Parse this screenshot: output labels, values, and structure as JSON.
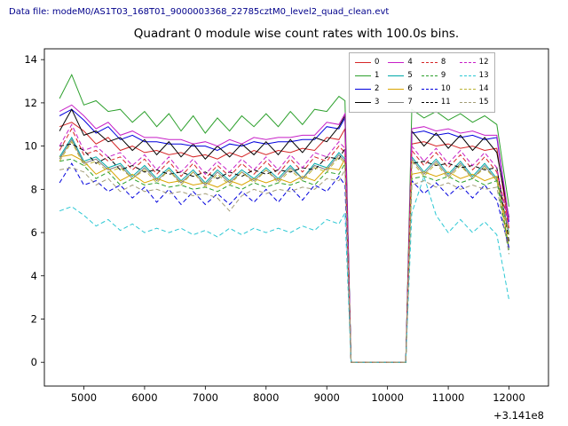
{
  "window": {
    "datafile_label": "Data file: modeM0/AS1T03_168T01_9000003368_22785cztM0_level2_quad_clean.evt"
  },
  "chart_data": {
    "type": "line",
    "title": "Quadrant 0 module wise count rates with 100.0s bins.",
    "xlabel": "",
    "ylabel": "",
    "x_offset_label": "+3.141e8",
    "xlim": [
      4350,
      12650
    ],
    "ylim": [
      -1.1,
      14.5
    ],
    "xticks": [
      5000,
      6000,
      7000,
      8000,
      9000,
      10000,
      11000,
      12000
    ],
    "yticks": [
      0,
      2,
      4,
      6,
      8,
      10,
      12,
      14
    ],
    "legend_position": "upper right",
    "grid": false,
    "x": [
      4600,
      4800,
      5000,
      5200,
      5400,
      5600,
      5800,
      6000,
      6200,
      6400,
      6600,
      6800,
      7000,
      7200,
      7400,
      7600,
      7800,
      8000,
      8200,
      8400,
      8600,
      8800,
      9000,
      9200,
      9300,
      9400,
      9800,
      10200,
      10300,
      10400,
      10600,
      10800,
      11000,
      11200,
      11400,
      11600,
      11800,
      12000
    ],
    "series": [
      {
        "name": "0",
        "color": "#d62728",
        "dash": false,
        "values": [
          10.9,
          11.1,
          10.7,
          10.1,
          10.4,
          9.8,
          10.0,
          9.7,
          9.8,
          9.6,
          9.7,
          9.5,
          9.6,
          9.4,
          9.7,
          9.5,
          9.8,
          9.6,
          9.8,
          9.7,
          9.9,
          9.8,
          10.4,
          10.3,
          10.8,
          0,
          0,
          0,
          0,
          10.1,
          10.2,
          10.0,
          10.1,
          9.9,
          10.0,
          9.8,
          9.9,
          6.2
        ]
      },
      {
        "name": "1",
        "color": "#2ca02c",
        "dash": false,
        "values": [
          12.2,
          13.3,
          11.9,
          12.1,
          11.6,
          11.7,
          11.1,
          11.6,
          10.9,
          11.5,
          10.7,
          11.4,
          10.6,
          11.3,
          10.7,
          11.4,
          10.9,
          11.5,
          10.9,
          11.6,
          11.0,
          11.7,
          11.6,
          12.3,
          12.1,
          0,
          0,
          0,
          0,
          11.7,
          11.3,
          11.6,
          11.2,
          11.5,
          11.1,
          11.4,
          11.0,
          7.2
        ]
      },
      {
        "name": "2",
        "color": "#0000dd",
        "dash": false,
        "values": [
          11.4,
          11.7,
          11.2,
          10.6,
          10.9,
          10.3,
          10.5,
          10.2,
          10.2,
          10.1,
          10.1,
          10.0,
          10.0,
          9.8,
          10.1,
          10.0,
          10.2,
          10.1,
          10.2,
          10.2,
          10.3,
          10.3,
          10.9,
          10.8,
          11.3,
          0,
          0,
          0,
          0,
          10.6,
          10.7,
          10.5,
          10.6,
          10.4,
          10.5,
          10.3,
          10.4,
          6.5
        ]
      },
      {
        "name": "3",
        "color": "#000000",
        "dash": false,
        "values": [
          10.7,
          11.7,
          10.5,
          10.7,
          10.2,
          10.4,
          9.8,
          10.3,
          9.6,
          10.2,
          9.5,
          10.1,
          9.4,
          10.0,
          9.5,
          10.1,
          9.6,
          10.2,
          9.6,
          10.3,
          9.7,
          10.4,
          10.2,
          10.9,
          11.4,
          0,
          0,
          0,
          0,
          10.7,
          10.0,
          10.6,
          9.9,
          10.5,
          9.8,
          10.4,
          9.7,
          6.7
        ]
      },
      {
        "name": "4",
        "color": "#c71fc7",
        "dash": false,
        "values": [
          11.6,
          11.9,
          11.4,
          10.8,
          11.1,
          10.5,
          10.7,
          10.4,
          10.4,
          10.3,
          10.3,
          10.1,
          10.2,
          10.0,
          10.3,
          10.1,
          10.4,
          10.3,
          10.4,
          10.4,
          10.5,
          10.5,
          11.1,
          11.0,
          11.5,
          0,
          0,
          0,
          0,
          10.8,
          10.9,
          10.7,
          10.8,
          10.6,
          10.7,
          10.5,
          10.5,
          6.6
        ]
      },
      {
        "name": "5",
        "color": "#00a8a8",
        "dash": false,
        "values": [
          9.5,
          10.4,
          9.3,
          9.5,
          9.0,
          9.2,
          8.6,
          9.1,
          8.5,
          9.0,
          8.4,
          8.9,
          8.3,
          8.9,
          8.4,
          8.9,
          8.5,
          9.0,
          8.5,
          9.1,
          8.5,
          9.2,
          9.0,
          9.7,
          9.4,
          0,
          0,
          0,
          0,
          9.5,
          8.8,
          9.4,
          8.7,
          9.3,
          8.6,
          9.2,
          8.5,
          6.0
        ]
      },
      {
        "name": "6",
        "color": "#d9a400",
        "dash": false,
        "values": [
          9.5,
          9.6,
          9.3,
          8.7,
          9.0,
          8.4,
          8.7,
          8.3,
          8.5,
          8.3,
          8.4,
          8.2,
          8.3,
          8.1,
          8.4,
          8.2,
          8.5,
          8.3,
          8.5,
          8.3,
          8.6,
          8.4,
          9.0,
          8.9,
          9.4,
          0,
          0,
          0,
          0,
          8.7,
          8.8,
          8.6,
          8.8,
          8.5,
          8.7,
          8.4,
          8.6,
          5.3
        ]
      },
      {
        "name": "7",
        "color": "#7f7f7f",
        "dash": false,
        "values": [
          9.4,
          10.3,
          9.2,
          9.4,
          8.9,
          9.1,
          8.5,
          9.0,
          8.4,
          8.9,
          8.3,
          8.8,
          8.2,
          8.8,
          8.3,
          8.8,
          8.4,
          8.9,
          8.4,
          9.0,
          8.5,
          9.1,
          8.9,
          9.6,
          9.3,
          0,
          0,
          0,
          0,
          9.4,
          8.7,
          9.3,
          8.6,
          9.2,
          8.5,
          9.1,
          8.4,
          5.9
        ]
      },
      {
        "name": "8",
        "color": "#d62728",
        "dash": true,
        "values": [
          9.8,
          10.8,
          9.6,
          9.8,
          9.3,
          9.5,
          8.9,
          9.4,
          8.7,
          9.3,
          8.6,
          9.2,
          8.5,
          9.1,
          8.6,
          9.2,
          8.7,
          9.3,
          8.7,
          9.4,
          8.8,
          9.5,
          9.3,
          10.0,
          9.7,
          0,
          0,
          0,
          0,
          9.8,
          9.1,
          9.7,
          9.0,
          9.6,
          8.9,
          9.5,
          8.8,
          6.2
        ]
      },
      {
        "name": "9",
        "color": "#2ca02c",
        "dash": true,
        "values": [
          9.3,
          9.4,
          9.1,
          8.5,
          8.8,
          8.2,
          8.5,
          8.2,
          8.3,
          8.1,
          8.2,
          8.0,
          8.1,
          7.9,
          8.2,
          8.0,
          8.3,
          8.1,
          8.3,
          8.2,
          8.4,
          8.2,
          8.8,
          8.7,
          9.2,
          0,
          0,
          0,
          0,
          8.5,
          8.6,
          8.4,
          8.6,
          8.3,
          8.5,
          8.2,
          8.4,
          5.2
        ]
      },
      {
        "name": "10",
        "color": "#0000dd",
        "dash": true,
        "values": [
          8.3,
          9.2,
          8.2,
          8.4,
          7.9,
          8.2,
          7.6,
          8.1,
          7.4,
          8.0,
          7.3,
          7.9,
          7.3,
          7.8,
          7.3,
          7.9,
          7.4,
          8.0,
          7.4,
          8.1,
          7.5,
          8.2,
          7.9,
          8.6,
          8.2,
          0,
          0,
          0,
          0,
          8.4,
          7.8,
          8.3,
          7.7,
          8.2,
          7.6,
          8.2,
          7.5,
          5.3
        ]
      },
      {
        "name": "11",
        "color": "#000000",
        "dash": true,
        "values": [
          10.0,
          10.1,
          9.8,
          9.2,
          9.5,
          8.9,
          9.1,
          8.8,
          8.9,
          8.7,
          8.8,
          8.6,
          8.8,
          8.5,
          8.8,
          8.6,
          8.9,
          8.7,
          8.9,
          8.8,
          9.0,
          8.9,
          9.5,
          9.4,
          9.9,
          0,
          0,
          0,
          0,
          9.2,
          9.3,
          9.1,
          9.2,
          9.0,
          9.1,
          8.9,
          9.0,
          5.6
        ]
      },
      {
        "name": "12",
        "color": "#c71fc7",
        "dash": true,
        "values": [
          10.0,
          11.0,
          9.8,
          10.0,
          9.5,
          9.7,
          9.1,
          9.6,
          8.9,
          9.5,
          8.8,
          9.4,
          8.7,
          9.3,
          8.8,
          9.4,
          8.9,
          9.5,
          8.9,
          9.6,
          9.0,
          9.7,
          9.5,
          10.2,
          9.9,
          0,
          0,
          0,
          0,
          10.0,
          9.3,
          9.9,
          9.2,
          9.8,
          9.1,
          9.7,
          9.0,
          6.3
        ]
      },
      {
        "name": "13",
        "color": "#2cc8d4",
        "dash": true,
        "values": [
          7.0,
          7.2,
          6.8,
          6.3,
          6.6,
          6.1,
          6.4,
          6.0,
          6.2,
          6.0,
          6.2,
          5.9,
          6.1,
          5.8,
          6.2,
          5.9,
          6.2,
          6.0,
          6.2,
          6.0,
          6.3,
          6.1,
          6.6,
          6.4,
          6.9,
          0,
          0,
          0,
          0,
          6.9,
          8.6,
          6.8,
          6.0,
          6.6,
          6.0,
          6.5,
          5.9,
          2.9
        ]
      },
      {
        "name": "14",
        "color": "#bcb434",
        "dash": true,
        "values": [
          9.3,
          10.2,
          9.1,
          9.3,
          8.8,
          9.0,
          8.5,
          8.9,
          8.3,
          8.9,
          8.2,
          8.8,
          8.1,
          8.7,
          8.2,
          8.8,
          8.3,
          8.9,
          8.3,
          8.9,
          8.4,
          9.0,
          8.8,
          9.5,
          9.2,
          0,
          0,
          0,
          0,
          9.3,
          8.6,
          9.2,
          8.5,
          9.1,
          8.5,
          9.0,
          8.4,
          5.9
        ]
      },
      {
        "name": "15",
        "color": "#a39d78",
        "dash": true,
        "values": [
          8.9,
          9.0,
          8.8,
          8.2,
          8.5,
          7.9,
          8.2,
          7.9,
          8.0,
          7.8,
          7.9,
          7.7,
          7.8,
          7.6,
          7.0,
          7.7,
          8.0,
          7.8,
          8.0,
          7.9,
          8.1,
          8.0,
          8.5,
          8.4,
          8.9,
          0,
          0,
          0,
          0,
          8.2,
          8.4,
          8.1,
          8.3,
          8.0,
          8.2,
          8.0,
          8.1,
          5.0
        ]
      }
    ]
  }
}
